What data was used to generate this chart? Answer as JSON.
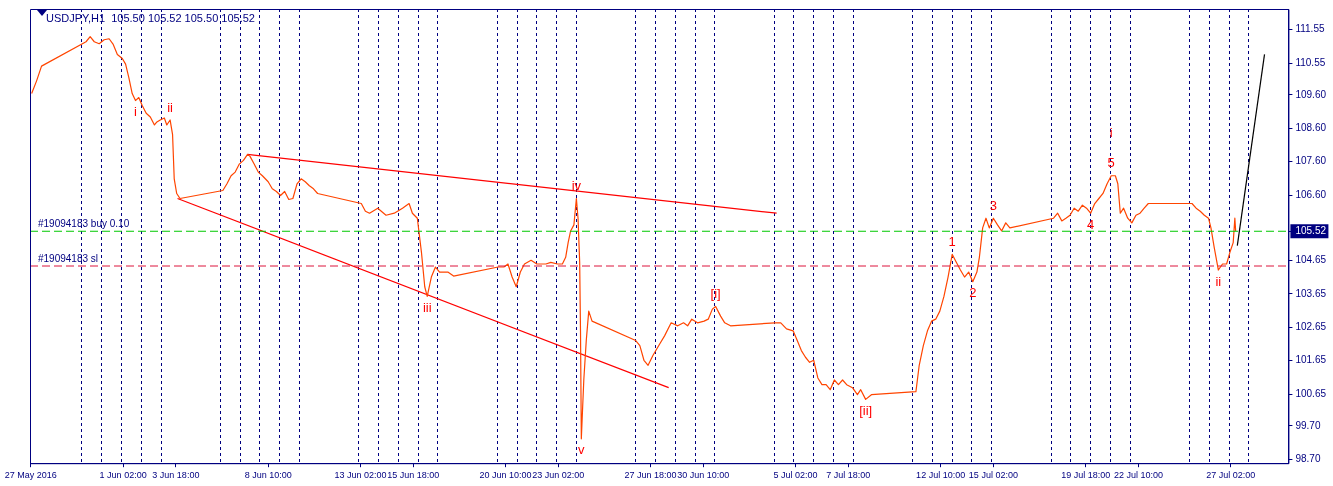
{
  "chart_data": {
    "type": "line",
    "title": "USDJPY,H1  105.50 105.52 105.50 105.52",
    "series": [
      {
        "color": "#ff4500",
        "x": [
          "2016-05-27T11:00",
          "2016-05-27T17:00",
          "2016-05-27T23:00",
          "2016-05-30T05:00",
          "2016-05-30T10:00",
          "2016-05-30T15:00",
          "2016-05-30T21:00",
          "2016-05-31T03:00",
          "2016-05-31T09:00",
          "2016-05-31T14:00",
          "2016-05-31T19:00",
          "2016-06-01T01:00",
          "2016-06-01T05:00",
          "2016-06-01T09:00",
          "2016-06-01T13:00",
          "2016-06-01T17:00",
          "2016-06-01T21:00",
          "2016-06-02T01:00",
          "2016-06-02T06:00",
          "2016-06-02T11:00",
          "2016-06-02T16:00",
          "2016-06-02T19:00",
          "2016-06-02T23:00",
          "2016-06-03T04:00",
          "2016-06-03T07:00",
          "2016-06-03T11:00",
          "2016-06-03T14:00",
          "2016-06-03T16:00",
          "2016-06-03T19:00",
          "2016-06-03T23:00",
          "2016-06-06T03:00",
          "2016-06-06T08:00",
          "2016-06-06T13:00",
          "2016-06-06T18:00",
          "2016-06-06T23:00",
          "2016-06-07T04:00",
          "2016-06-07T09:00",
          "2016-06-07T12:00",
          "2016-06-07T17:00",
          "2016-06-07T22:00",
          "2016-06-08T03:00",
          "2016-06-08T10:00",
          "2016-06-08T15:00",
          "2016-06-08T20:00",
          "2016-06-09T01:00",
          "2016-06-09T06:00",
          "2016-06-09T11:00",
          "2016-06-09T16:00",
          "2016-06-09T21:00",
          "2016-06-10T02:00",
          "2016-06-10T07:00",
          "2016-06-10T12:00",
          "2016-06-10T17:00",
          "2016-06-10T22:00",
          "2016-06-13T03:00",
          "2016-06-13T08:00",
          "2016-06-13T13:00",
          "2016-06-13T23:00",
          "2016-06-14T09:00",
          "2016-06-14T19:00",
          "2016-06-15T05:00",
          "2016-06-15T13:00",
          "2016-06-15T17:00",
          "2016-06-15T23:00",
          "2016-06-16T04:00",
          "2016-06-16T08:00",
          "2016-06-16T11:00",
          "2016-06-16T16:00",
          "2016-06-16T21:00",
          "2016-06-17T02:00",
          "2016-06-17T12:00",
          "2016-06-17T19:00",
          "2016-06-20T01:00",
          "2016-06-20T08:00",
          "2016-06-20T13:00",
          "2016-06-20T18:00",
          "2016-06-20T23:00",
          "2016-06-21T04:00",
          "2016-06-21T09:00",
          "2016-06-21T17:00",
          "2016-06-22T00:00",
          "2016-06-22T05:00",
          "2016-06-22T11:00",
          "2016-06-22T17:00",
          "2016-06-23T01:00",
          "2016-06-23T07:00",
          "2016-06-23T11:00",
          "2016-06-23T14:00",
          "2016-06-23T17:00",
          "2016-06-23T21:00",
          "2016-06-24T00:00",
          "2016-06-24T02:00",
          "2016-06-24T04:00",
          "2016-06-24T05:00",
          "2016-06-24T06:00",
          "2016-06-24T07:00",
          "2016-06-24T09:00",
          "2016-06-24T12:00",
          "2016-06-24T15:00",
          "2016-06-24T19:00",
          "2016-06-27T00:00",
          "2016-06-27T05:00",
          "2016-06-27T10:00",
          "2016-06-27T15:00",
          "2016-06-27T21:00",
          "2016-06-28T04:00",
          "2016-06-28T11:00",
          "2016-06-28T19:00",
          "2016-06-29T03:00",
          "2016-06-29T10:00",
          "2016-06-29T15:00",
          "2016-06-29T20:00",
          "2016-06-30T03:00",
          "2016-06-30T11:00",
          "2016-06-30T16:00",
          "2016-06-30T21:00",
          "2016-07-01T01:00",
          "2016-07-01T07:00",
          "2016-07-01T12:00",
          "2016-07-01T19:00",
          "2016-07-04T01:00",
          "2016-07-04T08:00",
          "2016-07-04T15:00",
          "2016-07-04T23:00",
          "2016-07-05T04:00",
          "2016-07-05T09:00",
          "2016-07-05T14:00",
          "2016-07-05T19:00",
          "2016-07-06T00:00",
          "2016-07-06T05:00",
          "2016-07-06T10:00",
          "2016-07-06T15:00",
          "2016-07-06T20:00",
          "2016-07-07T01:00",
          "2016-07-07T06:00",
          "2016-07-07T11:00",
          "2016-07-07T16:00",
          "2016-07-07T23:00",
          "2016-07-08T05:00",
          "2016-07-08T09:00",
          "2016-07-08T15:00",
          "2016-07-08T22:00",
          "2016-07-11T04:00",
          "2016-07-11T08:00",
          "2016-07-11T13:00",
          "2016-07-11T18:00",
          "2016-07-11T23:00",
          "2016-07-12T04:00",
          "2016-07-12T09:00",
          "2016-07-12T14:00",
          "2016-07-12T19:00",
          "2016-07-13T00:00",
          "2016-07-13T05:00",
          "2016-07-13T10:00",
          "2016-07-13T15:00",
          "2016-07-13T20:00",
          "2016-07-14T01:00",
          "2016-07-14T06:00",
          "2016-07-14T09:00",
          "2016-07-14T13:00",
          "2016-07-14T17:00",
          "2016-07-14T21:00",
          "2016-07-15T02:00",
          "2016-07-15T07:00",
          "2016-07-15T12:00",
          "2016-07-15T17:00",
          "2016-07-15T22:00",
          "2016-07-18T03:00",
          "2016-07-18T08:00",
          "2016-07-18T13:00",
          "2016-07-18T18:00",
          "2016-07-18T23:00",
          "2016-07-19T04:00",
          "2016-07-19T09:00",
          "2016-07-19T14:00",
          "2016-07-19T19:00",
          "2016-07-20T00:00",
          "2016-07-20T05:00",
          "2016-07-20T10:00",
          "2016-07-20T15:00",
          "2016-07-20T20:00",
          "2016-07-21T01:00",
          "2016-07-21T06:00",
          "2016-07-21T09:00",
          "2016-07-21T12:00",
          "2016-07-21T16:00",
          "2016-07-21T21:00",
          "2016-07-22T02:00",
          "2016-07-22T07:00",
          "2016-07-22T12:00",
          "2016-07-22T17:00",
          "2016-07-22T22:00",
          "2016-07-25T03:00",
          "2016-07-25T08:00",
          "2016-07-25T13:00",
          "2016-07-25T18:00",
          "2016-07-25T23:00",
          "2016-07-26T02:00",
          "2016-07-26T06:00",
          "2016-07-26T11:00",
          "2016-07-26T16:00",
          "2016-07-26T21:00",
          "2016-07-27T01:00",
          "2016-07-27T05:00",
          "2016-07-27T07:00",
          "2016-07-27T08:00"
        ],
        "values": [
          109.64,
          110.02,
          110.46,
          111.19,
          111.34,
          111.19,
          111.13,
          111.25,
          111.28,
          111.11,
          110.81,
          110.69,
          110.52,
          110.11,
          109.64,
          109.43,
          109.52,
          109.29,
          109.05,
          108.94,
          108.7,
          108.79,
          108.85,
          108.91,
          108.7,
          108.85,
          108.41,
          107.09,
          106.65,
          106.5,
          106.74,
          106.94,
          107.18,
          107.29,
          107.53,
          107.64,
          107.82,
          107.76,
          107.53,
          107.29,
          107.18,
          107.0,
          106.79,
          106.71,
          106.59,
          106.71,
          106.47,
          106.5,
          106.94,
          107.09,
          107.0,
          106.88,
          106.79,
          106.65,
          106.35,
          106.12,
          106.06,
          106.21,
          106.0,
          106.06,
          106.21,
          106.35,
          106.06,
          105.91,
          104.89,
          103.86,
          103.57,
          104.15,
          104.45,
          104.3,
          104.3,
          104.18,
          104.45,
          104.45,
          104.54,
          104.15,
          103.86,
          104.3,
          104.54,
          104.65,
          104.54,
          104.54,
          104.54,
          104.59,
          104.54,
          104.54,
          104.74,
          105.18,
          105.53,
          105.71,
          106.5,
          105.91,
          104.59,
          102.54,
          99.31,
          99.9,
          101.07,
          102.25,
          103.13,
          102.83,
          102.25,
          102.1,
          101.66,
          101.51,
          101.81,
          102.1,
          102.39,
          102.78,
          102.69,
          102.78,
          102.69,
          102.89,
          102.78,
          102.83,
          102.89,
          103.19,
          103.27,
          102.98,
          102.78,
          102.69,
          102.78,
          102.78,
          102.6,
          102.54,
          102.25,
          101.95,
          101.75,
          101.6,
          101.66,
          101.13,
          100.93,
          100.93,
          100.78,
          101.07,
          100.93,
          101.07,
          100.93,
          100.84,
          100.63,
          100.78,
          100.49,
          100.63,
          100.72,
          101.51,
          102.1,
          102.54,
          102.83,
          102.89,
          103.13,
          103.57,
          104.15,
          104.83,
          104.59,
          104.36,
          104.15,
          104.3,
          104.01,
          104.3,
          104.74,
          105.62,
          105.91,
          105.62,
          105.91,
          105.71,
          105.53,
          105.77,
          105.62,
          105.91,
          106.06,
          105.83,
          105.91,
          106.0,
          106.21,
          106.12,
          106.3,
          106.21,
          106.06,
          106.35,
          106.5,
          106.65,
          106.94,
          107.18,
          107.18,
          106.94,
          106.06,
          106.21,
          105.91,
          105.77,
          106.0,
          106.06,
          106.21,
          106.35,
          106.35,
          106.21,
          106.12,
          106.0,
          105.91,
          105.62,
          105.03,
          104.36,
          104.54,
          104.54,
          104.89,
          105.18,
          105.91,
          105.53
        ]
      },
      {
        "color": "#ff0000",
        "x": [
          "2016-06-07T09:00",
          "2016-07-04T03:00"
        ],
        "values": [
          107.82,
          106.06
        ]
      },
      {
        "color": "#ff0000",
        "x": [
          "2016-06-03T20:00",
          "2016-06-28T16:00"
        ],
        "values": [
          106.5,
          100.84
        ]
      },
      {
        "color": "#000000",
        "x": [
          "2016-07-27T10:00",
          "2016-07-28T19:00"
        ],
        "values": [
          105.09,
          110.81
        ]
      }
    ],
    "xlim": [
      "2016-05-27T09:00",
      "2016-07-30T00:00"
    ],
    "xticks": [
      {
        "value": "2016-05-27T10:00",
        "label": "27 May 2016"
      },
      {
        "value": "2016-06-01T02:00",
        "label": "1 Jun 02:00"
      },
      {
        "value": "2016-06-03T18:00",
        "label": "3 Jun 18:00"
      },
      {
        "value": "2016-06-08T10:00",
        "label": "8 Jun 10:00"
      },
      {
        "value": "2016-06-13T02:00",
        "label": "13 Jun 02:00"
      },
      {
        "value": "2016-06-15T18:00",
        "label": "15 Jun 18:00"
      },
      {
        "value": "2016-06-20T10:00",
        "label": "20 Jun 10:00"
      },
      {
        "value": "2016-06-23T02:00",
        "label": "23 Jun 02:00"
      },
      {
        "value": "2016-06-27T18:00",
        "label": "27 Jun 18:00"
      },
      {
        "value": "2016-06-30T10:00",
        "label": "30 Jun 10:00"
      },
      {
        "value": "2016-07-05T02:00",
        "label": "5 Jul 02:00"
      },
      {
        "value": "2016-07-07T18:00",
        "label": "7 Jul 18:00"
      },
      {
        "value": "2016-07-12T10:00",
        "label": "12 Jul 10:00"
      },
      {
        "value": "2016-07-15T02:00",
        "label": "15 Jul 02:00"
      },
      {
        "value": "2016-07-19T18:00",
        "label": "19 Jul 18:00"
      },
      {
        "value": "2016-07-22T10:00",
        "label": "22 Jul 10:00"
      },
      {
        "value": "2016-07-27T02:00",
        "label": "27 Jul 02:00"
      },
      {
        "value": "2016-05-30T00:00",
        "label": null
      },
      {
        "value": "2016-05-31T00:00",
        "label": null
      },
      {
        "value": "2016-06-01T00:00",
        "label": null
      },
      {
        "value": "2016-06-02T00:00",
        "label": null
      },
      {
        "value": "2016-06-03T00:00",
        "label": null
      },
      {
        "value": "2016-06-06T00:00",
        "label": null
      },
      {
        "value": "2016-06-07T00:00",
        "label": null
      },
      {
        "value": "2016-06-08T00:00",
        "label": null
      },
      {
        "value": "2016-06-09T00:00",
        "label": null
      },
      {
        "value": "2016-06-10T00:00",
        "label": null
      },
      {
        "value": "2016-06-13T00:00",
        "label": null
      },
      {
        "value": "2016-06-14T00:00",
        "label": null
      },
      {
        "value": "2016-06-15T00:00",
        "label": null
      },
      {
        "value": "2016-06-16T00:00",
        "label": null
      },
      {
        "value": "2016-06-17T00:00",
        "label": null
      },
      {
        "value": "2016-06-20T00:00",
        "label": null
      },
      {
        "value": "2016-06-21T00:00",
        "label": null
      },
      {
        "value": "2016-06-22T00:00",
        "label": null
      },
      {
        "value": "2016-06-23T00:00",
        "label": null
      },
      {
        "value": "2016-06-24T00:00",
        "label": null
      },
      {
        "value": "2016-06-27T00:00",
        "label": null
      },
      {
        "value": "2016-06-28T00:00",
        "label": null
      },
      {
        "value": "2016-06-29T00:00",
        "label": null
      },
      {
        "value": "2016-06-30T00:00",
        "label": null
      },
      {
        "value": "2016-07-01T00:00",
        "label": null
      },
      {
        "value": "2016-07-04T00:00",
        "label": null
      },
      {
        "value": "2016-07-05T00:00",
        "label": null
      },
      {
        "value": "2016-07-06T00:00",
        "label": null
      },
      {
        "value": "2016-07-07T00:00",
        "label": null
      },
      {
        "value": "2016-07-08T00:00",
        "label": null
      },
      {
        "value": "2016-07-11T00:00",
        "label": null
      },
      {
        "value": "2016-07-12T00:00",
        "label": null
      },
      {
        "value": "2016-07-13T00:00",
        "label": null
      },
      {
        "value": "2016-07-14T00:00",
        "label": null
      },
      {
        "value": "2016-07-15T00:00",
        "label": null
      },
      {
        "value": "2016-07-18T00:00",
        "label": null
      },
      {
        "value": "2016-07-19T00:00",
        "label": null
      },
      {
        "value": "2016-07-20T00:00",
        "label": null
      },
      {
        "value": "2016-07-21T00:00",
        "label": null
      },
      {
        "value": "2016-07-22T00:00",
        "label": null
      },
      {
        "value": "2016-07-25T00:00",
        "label": null
      },
      {
        "value": "2016-07-26T00:00",
        "label": null
      },
      {
        "value": "2016-07-27T00:00",
        "label": null
      },
      {
        "value": "2016-07-28T00:00",
        "label": null
      }
    ],
    "ylim": [
      98.58,
      112.17
    ],
    "yticks": [
      {
        "value": 98.7,
        "label": "98.70"
      },
      {
        "value": 99.7,
        "label": "99.70"
      },
      {
        "value": 100.65,
        "label": "100.65"
      },
      {
        "value": 101.65,
        "label": "101.65"
      },
      {
        "value": 102.65,
        "label": "102.65"
      },
      {
        "value": 103.65,
        "label": "103.65"
      },
      {
        "value": 104.65,
        "label": "104.65"
      },
      {
        "value": 105.52,
        "label": "105.52"
      },
      {
        "value": 106.6,
        "label": "106.60"
      },
      {
        "value": 107.6,
        "label": "107.60"
      },
      {
        "value": 108.6,
        "label": "108.60"
      },
      {
        "value": 109.6,
        "label": "109.60"
      },
      {
        "value": 110.55,
        "label": "110.55"
      },
      {
        "value": 111.55,
        "label": "111.55"
      }
    ],
    "ref_lines": [
      {
        "axis": "y",
        "value": 105.52,
        "label": "#19094183 buy 0.10",
        "color": "#00c800",
        "line_style": "dashed"
      },
      {
        "axis": "y",
        "value": 104.48,
        "label": "#19094183 sl",
        "color": "#dc143c",
        "line_style": "dashed"
      }
    ],
    "annotations": [
      {
        "text": "i",
        "x": "2016-06-01T17:00",
        "y": 109.43
      },
      {
        "text": "ii",
        "x": "2016-06-03T11:00",
        "y": 108.85
      },
      {
        "text": "iii",
        "x": "2016-06-16T11:00",
        "y": 103.57
      },
      {
        "text": "iv",
        "x": "2016-06-24T00:00",
        "y": 106.5
      },
      {
        "text": "v",
        "x": "2016-06-24T06:00",
        "y": 99.31
      },
      {
        "text": "[i]",
        "x": "2016-07-01T01:00",
        "y": 103.27
      },
      {
        "text": "[ii]",
        "x": "2016-07-08T15:00",
        "y": 100.49
      },
      {
        "text": "1",
        "x": "2016-07-13T00:00",
        "y": 104.83
      },
      {
        "text": "2",
        "x": "2016-07-14T01:00",
        "y": 104.01
      },
      {
        "text": "3",
        "x": "2016-07-15T02:00",
        "y": 105.91
      },
      {
        "text": "4",
        "x": "2016-07-20T00:00",
        "y": 106.06
      },
      {
        "text": "5",
        "x": "2016-07-21T01:00",
        "y": 107.18
      },
      {
        "text": "i",
        "x": "2016-07-21T01:00",
        "y": 107.18
      },
      {
        "text": "ii",
        "x": "2016-07-26T11:00",
        "y": 104.36
      }
    ],
    "grid": "x",
    "legend": false,
    "marker": "none",
    "line_style": "solid"
  }
}
